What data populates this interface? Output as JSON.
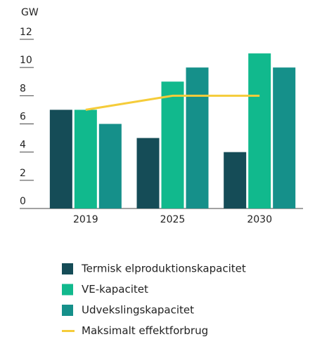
{
  "chart_data": {
    "type": "bar",
    "ylabel": "GW",
    "categories": [
      "2019",
      "2025",
      "2030"
    ],
    "series": [
      {
        "name": "Termisk elproduktionskapacitet",
        "color": "#154c57",
        "values": [
          7,
          5,
          4
        ]
      },
      {
        "name": "VE-kapacitet",
        "color": "#11b98d",
        "values": [
          7,
          9,
          11
        ]
      },
      {
        "name": "Udvekslingskapacitet",
        "color": "#15908a",
        "values": [
          6,
          10,
          10
        ]
      },
      {
        "name": "Maksimalt effektforbrug",
        "color": "#f5cc3a",
        "kind": "line",
        "values": [
          7,
          8,
          8
        ]
      }
    ],
    "ylim": [
      0,
      12
    ],
    "yticks": [
      0,
      2,
      4,
      6,
      8,
      10,
      12
    ]
  }
}
